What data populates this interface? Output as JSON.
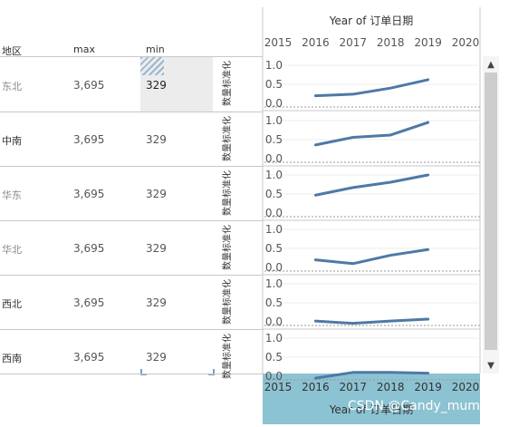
{
  "table": {
    "headers": {
      "region": "地区",
      "max": "max",
      "min": "min"
    },
    "rows": [
      {
        "region": "东北",
        "max": "3,695",
        "min": "329"
      },
      {
        "region": "中南",
        "max": "3,695",
        "min": "329"
      },
      {
        "region": "华东",
        "max": "3,695",
        "min": "329"
      },
      {
        "region": "华北",
        "max": "3,695",
        "min": "329"
      },
      {
        "region": "西北",
        "max": "3,695",
        "min": "329"
      },
      {
        "region": "西南",
        "max": "3,695",
        "min": "329"
      }
    ]
  },
  "chart_data": {
    "type": "line",
    "title": "Year of 订单日期",
    "bottom_axis_title": "Year of 订单日期",
    "ylabel": "数量标准化",
    "x": [
      2016,
      2017,
      2018,
      2019
    ],
    "x_ticks": [
      "2015",
      "2016",
      "2017",
      "2018",
      "2019",
      "2020"
    ],
    "y_ticks": [
      "0.0",
      "0.5",
      "1.0"
    ],
    "ylim": [
      0,
      1
    ],
    "line_color": "#4e79a7",
    "series": [
      {
        "values": [
          0.2,
          0.24,
          0.4,
          0.62
        ]
      },
      {
        "values": [
          0.36,
          0.56,
          0.62,
          0.95
        ]
      },
      {
        "values": [
          0.47,
          0.67,
          0.81,
          1.0
        ]
      },
      {
        "values": [
          0.2,
          0.1,
          0.32,
          0.47
        ]
      },
      {
        "values": [
          0.02,
          -0.04,
          0.02,
          0.07
        ]
      },
      {
        "values": [
          -0.05,
          0.1,
          0.1,
          0.08
        ]
      }
    ]
  },
  "watermark": "CSDN @Candy_mum",
  "scrollbar": {
    "up": "▲",
    "down": "▼"
  }
}
